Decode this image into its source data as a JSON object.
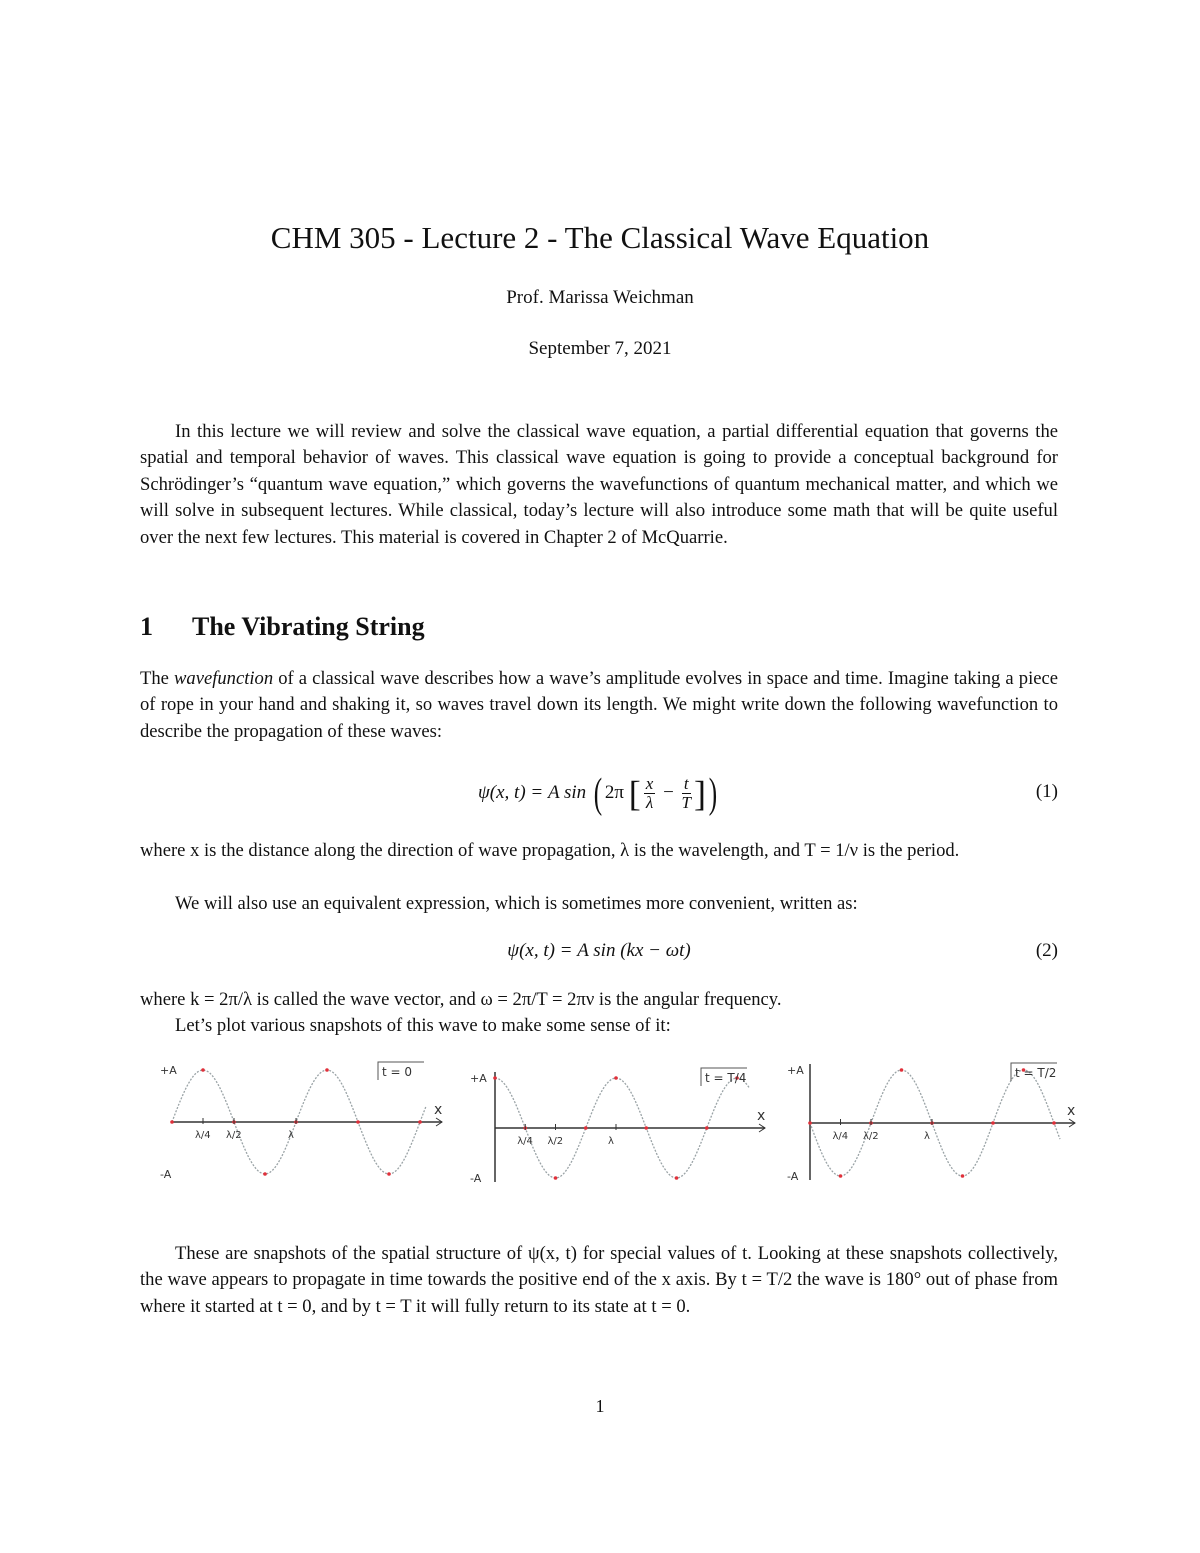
{
  "header": {
    "title": "CHM 305 - Lecture 2 - The Classical Wave Equation",
    "author": "Prof. Marissa Weichman",
    "date": "September 7, 2021"
  },
  "intro": "In this lecture we will review and solve the classical wave equation, a partial differential equation that governs the spatial and temporal behavior of waves. This classical wave equation is going to provide a conceptual background for Schrödinger’s “quantum wave equation,” which governs the wavefunctions of quantum mechanical matter, and which we will solve in subsequent lectures. While classical, today’s lecture will also introduce some math that will be quite useful over the next few lectures. This material is covered in Chapter 2 of McQuarrie.",
  "section1": {
    "number": "1",
    "title": "The Vibrating String",
    "p1_a": "The ",
    "p1_em": "wavefunction",
    "p1_b": " of a classical wave describes how a wave’s amplitude evolves in space and time. Imagine taking a piece of rope in your hand and shaking it, so waves travel down its length. We might write down the following wavefunction to describe the propagation of these waves:",
    "eq1": {
      "lhs": "ψ(x, t) = A sin",
      "two_pi": "2π",
      "x": "x",
      "lambda": "λ",
      "minus": "−",
      "t": "t",
      "T": "T",
      "number": "(1)"
    },
    "p2": "where x is the distance along the direction of wave propagation, λ is the wavelength, and T = 1/ν is the period.",
    "p3": "We will also use an equivalent expression, which is sometimes more convenient, written as:",
    "eq2": {
      "text": "ψ(x, t) = A sin (kx − ωt)",
      "number": "(2)"
    },
    "p4": "where k = 2π/λ is called the wave vector, and ω = 2π/T = 2πν is the angular frequency.",
    "p5": "Let’s plot various snapshots of this wave to make some sense of it:",
    "plots": [
      {
        "time_label": "t = 0",
        "plus_a": "+A",
        "minus_a": "-A",
        "x_label": "x",
        "ticks": [
          "λ/4",
          "λ/2",
          "λ"
        ]
      },
      {
        "time_label": "t = T/4",
        "plus_a": "+A",
        "minus_a": "-A",
        "x_label": "x",
        "ticks": [
          "λ/4",
          "λ/2",
          "λ"
        ]
      },
      {
        "time_label": "t = T/2",
        "plus_a": "+A",
        "minus_a": "-A",
        "x_label": "x",
        "ticks": [
          "λ/4",
          "λ/2",
          "λ"
        ]
      }
    ],
    "p6": "These are snapshots of the spatial structure of ψ(x, t) for special values of t. Looking at these snapshots collectively, the wave appears to propagate in time towards the positive end of the x axis. By t = T/2 the wave is 180° out of phase from where it started at t = 0, and by t = T it will fully return to its state at t = 0."
  },
  "colors": {
    "curve": "#9aa3a6",
    "points": "#e0303a",
    "axis": "#333333"
  },
  "page_number": "1"
}
